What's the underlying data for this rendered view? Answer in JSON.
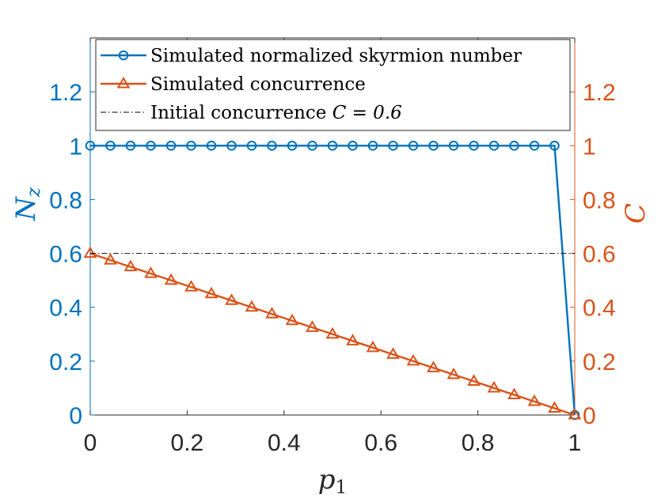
{
  "chart_data": {
    "type": "line",
    "xlabel": "p",
    "xlabel_sub": "1",
    "ylabel_left": "N",
    "ylabel_left_sub": "z",
    "ylabel_right": "C",
    "xlim": [
      0,
      1
    ],
    "ylim_left": [
      0,
      1.4
    ],
    "ylim_right": [
      0,
      1.4
    ],
    "x_ticks": [
      0,
      0.2,
      0.4,
      0.6,
      0.8,
      1
    ],
    "x_tick_labels": [
      "0",
      "0.2",
      "0.4",
      "0.6",
      "0.8",
      "1"
    ],
    "y_ticks": [
      0,
      0.2,
      0.4,
      0.6,
      0.8,
      1,
      1.2
    ],
    "y_tick_labels": [
      "0",
      "0.2",
      "0.4",
      "0.6",
      "0.8",
      "1",
      "1.2"
    ],
    "colors": {
      "left": "#0072BD",
      "right": "#D95319",
      "reference": "#000000"
    },
    "series": [
      {
        "name": "Simulated normalized skyrmion number",
        "axis": "left",
        "marker": "circle",
        "x": [
          0,
          0.0417,
          0.0833,
          0.125,
          0.1667,
          0.2083,
          0.25,
          0.2917,
          0.3333,
          0.375,
          0.4167,
          0.4583,
          0.5,
          0.5417,
          0.5833,
          0.625,
          0.6667,
          0.7083,
          0.75,
          0.7917,
          0.8333,
          0.875,
          0.9167,
          0.9583,
          1
        ],
        "values": [
          1,
          1,
          1,
          1,
          1,
          1,
          1,
          1,
          1,
          1,
          1,
          1,
          1,
          1,
          1,
          1,
          1,
          1,
          1,
          1,
          1,
          1,
          1,
          1,
          0
        ]
      },
      {
        "name": "Simulated concurrence",
        "axis": "right",
        "marker": "triangle",
        "x": [
          0,
          0.0417,
          0.0833,
          0.125,
          0.1667,
          0.2083,
          0.25,
          0.2917,
          0.3333,
          0.375,
          0.4167,
          0.4583,
          0.5,
          0.5417,
          0.5833,
          0.625,
          0.6667,
          0.7083,
          0.75,
          0.7917,
          0.8333,
          0.875,
          0.9167,
          0.9583,
          1
        ],
        "values": [
          0.6,
          0.575,
          0.55,
          0.525,
          0.5,
          0.475,
          0.45,
          0.425,
          0.4,
          0.375,
          0.35,
          0.325,
          0.3,
          0.275,
          0.25,
          0.225,
          0.2,
          0.175,
          0.15,
          0.125,
          0.1,
          0.075,
          0.05,
          0.025,
          0
        ]
      },
      {
        "name": "Initial concurrence",
        "legend_math": "C = 0.6",
        "axis": "right",
        "marker": "none",
        "style": "dash-dot",
        "x": [
          0,
          1
        ],
        "values": [
          0.6,
          0.6
        ]
      }
    ],
    "legend_position": "top"
  }
}
